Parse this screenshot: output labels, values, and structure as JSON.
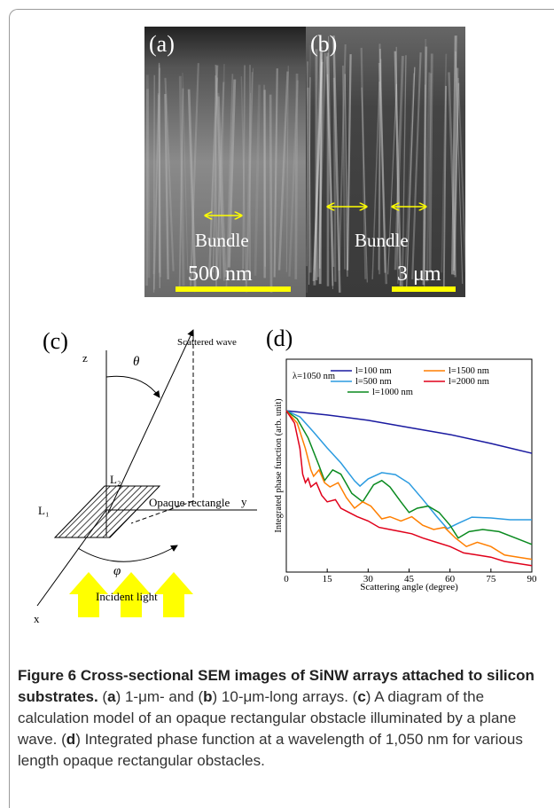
{
  "panel_a": {
    "label": "(a)",
    "annotation": "Bundle",
    "scale": "500 nm"
  },
  "panel_b": {
    "label": "(b)",
    "annotation": "Bundle",
    "scale": "3 μm"
  },
  "panel_c": {
    "label": "(c)",
    "z": "z",
    "theta": "θ",
    "scattered": "Scattered wave",
    "l2": "L₂",
    "rectangle": "Opaque rectangle",
    "l1": "L₁",
    "y": "y",
    "phi": "φ",
    "incident": "Incident light",
    "x": "x"
  },
  "chart_data": {
    "type": "line",
    "title": "(d)",
    "ylabel": "Integrated phase function (arb. unit)",
    "xlabel": "Scattering angle (degree)",
    "annotation": "λ=1050 nm",
    "xlim": [
      0,
      90
    ],
    "ylim": [
      0,
      1
    ],
    "xticks": [
      0,
      15,
      30,
      45,
      60,
      75,
      90
    ],
    "series": [
      {
        "name": "l=100 nm",
        "color": "#1a1aa0",
        "x": [
          0,
          15,
          30,
          45,
          60,
          75,
          90
        ],
        "values": [
          0.758,
          0.738,
          0.713,
          0.679,
          0.646,
          0.604,
          0.558
        ]
      },
      {
        "name": "l=500 nm",
        "color": "#2b9be0",
        "x": [
          0,
          5,
          10,
          15,
          20,
          25,
          27,
          30,
          35,
          40,
          45,
          50,
          55,
          59,
          63,
          68,
          75,
          82,
          90
        ],
        "values": [
          0.758,
          0.729,
          0.658,
          0.583,
          0.513,
          0.429,
          0.404,
          0.438,
          0.467,
          0.458,
          0.417,
          0.342,
          0.263,
          0.204,
          0.229,
          0.258,
          0.254,
          0.246,
          0.246
        ]
      },
      {
        "name": "l=1000 nm",
        "color": "#0a8a1f",
        "x": [
          0,
          4,
          8,
          12,
          14,
          17,
          20,
          24,
          28,
          32,
          35,
          38,
          42,
          45,
          48,
          52,
          56,
          60,
          63,
          67,
          72,
          78,
          84,
          90
        ],
        "values": [
          0.758,
          0.72,
          0.63,
          0.5,
          0.43,
          0.48,
          0.46,
          0.37,
          0.33,
          0.41,
          0.43,
          0.4,
          0.33,
          0.28,
          0.3,
          0.31,
          0.28,
          0.22,
          0.16,
          0.19,
          0.2,
          0.19,
          0.16,
          0.13
        ]
      },
      {
        "name": "l=1500 nm",
        "color": "#ff7f00",
        "x": [
          0,
          4,
          7,
          9,
          10,
          12,
          14,
          16,
          19,
          22,
          25,
          28,
          31,
          35,
          38,
          42,
          46,
          50,
          54,
          58,
          62,
          66,
          70,
          75,
          80,
          85,
          90
        ],
        "values": [
          0.758,
          0.7,
          0.58,
          0.48,
          0.45,
          0.48,
          0.42,
          0.4,
          0.42,
          0.35,
          0.3,
          0.33,
          0.31,
          0.25,
          0.26,
          0.24,
          0.26,
          0.22,
          0.2,
          0.21,
          0.16,
          0.12,
          0.14,
          0.12,
          0.08,
          0.07,
          0.06
        ]
      },
      {
        "name": "l=2000 nm",
        "color": "#e0001a",
        "x": [
          0,
          3,
          5,
          6,
          7,
          8,
          9,
          11,
          13,
          15,
          18,
          20,
          23,
          26,
          30,
          34,
          38,
          42,
          46,
          50,
          55,
          60,
          65,
          70,
          75,
          80,
          85,
          90
        ],
        "values": [
          0.758,
          0.7,
          0.58,
          0.46,
          0.42,
          0.44,
          0.4,
          0.42,
          0.36,
          0.33,
          0.34,
          0.3,
          0.28,
          0.26,
          0.24,
          0.21,
          0.2,
          0.19,
          0.18,
          0.16,
          0.14,
          0.12,
          0.09,
          0.08,
          0.07,
          0.05,
          0.04,
          0.03
        ]
      }
    ]
  },
  "caption": {
    "title": "Figure 6 Cross-sectional SEM images of SiNW arrays attached to silicon substrates.",
    "segments": [
      " (",
      "a",
      ") 1-μm- and (",
      "b",
      ") 10-μm-long arrays. (",
      "c",
      ") A diagram of the calculation model of an opaque rectangular obstacle illuminated by a plane wave. (",
      "d",
      ") Integrated phase function at a wavelength of 1,050 nm for various length opaque rectangular obstacles."
    ]
  }
}
